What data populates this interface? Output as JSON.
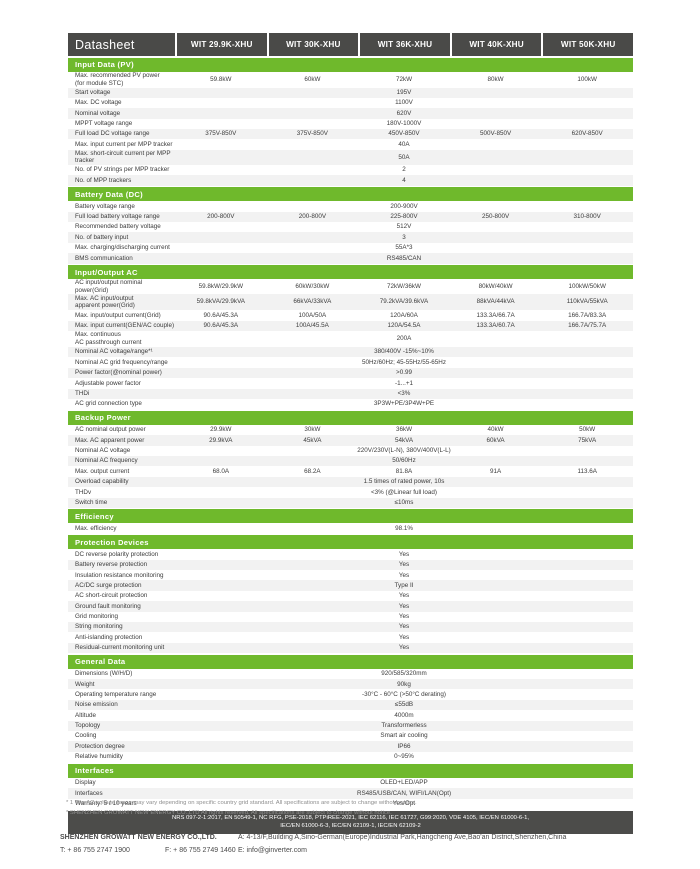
{
  "colors": {
    "accent_green": "#6FB92C",
    "header_dark": "#4A4A48",
    "certbar_dark": "#4C4C4A",
    "zebra_gray": "#F2F2F2",
    "text": "#3B3B3B"
  },
  "header": {
    "title": "Datasheet",
    "models": [
      "WIT 29.9K-XHU",
      "WIT 30K-XHU",
      "WIT 36K-XHU",
      "WIT 40K-XHU",
      "WIT 50K-XHU"
    ]
  },
  "sections": [
    {
      "title": "Input Data (PV)",
      "rows": [
        {
          "label": "Max. recommended PV power\n(for module STC)",
          "values": [
            "59.8kW",
            "60kW",
            "72kW",
            "80kW",
            "100kW"
          ]
        },
        {
          "label": "Start voltage",
          "span": "195V"
        },
        {
          "label": "Max. DC voltage",
          "span": "1100V"
        },
        {
          "label": "Nominal voltage",
          "span": "620V"
        },
        {
          "label": "MPPT voltage range",
          "span": "180V-1000V"
        },
        {
          "label": "Full load DC voltage range",
          "values": [
            "375V-850V",
            "375V-850V",
            "450V-850V",
            "500V-850V",
            "620V-850V"
          ]
        },
        {
          "label": "Max. input current per MPP tracker",
          "span": "40A"
        },
        {
          "label": "Max. short-circuit current per MPP tracker",
          "span": "50A"
        },
        {
          "label": "No. of PV strings per MPP tracker",
          "span": "2"
        },
        {
          "label": "No. of MPP trackers",
          "span": "4"
        }
      ]
    },
    {
      "title": "Battery Data (DC)",
      "rows": [
        {
          "label": "Battery voltage range",
          "span": "200-900V"
        },
        {
          "label": "Full load battery voltage range",
          "values": [
            "200-800V",
            "200-800V",
            "225-800V",
            "250-800V",
            "310-800V"
          ]
        },
        {
          "label": "Recommended battery voltage",
          "span": "512V"
        },
        {
          "label": "No. of battery input",
          "span": "3"
        },
        {
          "label": "Max. charging/discharging current",
          "span": "55A*3"
        },
        {
          "label": "BMS communication",
          "span": "RS485/CAN"
        }
      ]
    },
    {
      "title": "Input/Output AC",
      "rows": [
        {
          "label": "AC input/output nominal power(Grid)",
          "values": [
            "59.8kW/29.9kW",
            "60kW/30kW",
            "72kW/36kW",
            "80kW/40kW",
            "100kW/50kW"
          ]
        },
        {
          "label": "Max. AC input/output\napparent power(Grid)",
          "values": [
            "59.8kVA/29.9kVA",
            "66kVA/33kVA",
            "79.2kVA/39.6kVA",
            "88kVA/44kVA",
            "110kVA/55kVA"
          ]
        },
        {
          "label": "Max. input/output current(Grid)",
          "values": [
            "90.6A/45.3A",
            "100A/50A",
            "120A/60A",
            "133.3A/66.7A",
            "166.7A/83.3A"
          ]
        },
        {
          "label": "Max. input current(GEN/AC couple)",
          "values": [
            "90.6A/45.3A",
            "100A/45.5A",
            "120A/54.5A",
            "133.3A/60.7A",
            "166.7A/75.7A"
          ]
        },
        {
          "label": "Max. continuous\nAC passthrough current",
          "span": "200A"
        },
        {
          "label": "Nominal AC voltage/range*¹",
          "span": "380/400V  -15%~10%"
        },
        {
          "label": "Nominal AC grid frequency/range",
          "span": "50Hz/60Hz; 45-55Hz/55-65Hz"
        },
        {
          "label": "Power factor(@nominal power)",
          "span": ">0.99"
        },
        {
          "label": "Adjustable power factor",
          "span": "-1...+1"
        },
        {
          "label": "THDi",
          "span": "<3%"
        },
        {
          "label": "AC grid connection type",
          "span": "3P3W+PE/3P4W+PE"
        }
      ]
    },
    {
      "title": "Backup Power",
      "rows": [
        {
          "label": "AC nominal output power",
          "values": [
            "29.9kW",
            "30kW",
            "36kW",
            "40kW",
            "50kW"
          ]
        },
        {
          "label": "Max. AC apparent power",
          "values": [
            "29.9kVA",
            "45kVA",
            "54kVA",
            "60kVA",
            "75kVA"
          ]
        },
        {
          "label": "Nominal AC voltage",
          "span": "220V/230V(L-N), 380V/400V(L-L)"
        },
        {
          "label": "Nominal AC frequency",
          "span": "50/60Hz"
        },
        {
          "label": "Max. output current",
          "values": [
            "68.0A",
            "68.2A",
            "81.8A",
            "91A",
            "113.6A"
          ]
        },
        {
          "label": "Overload capability",
          "span": "1.5 times of rated power, 10s"
        },
        {
          "label": "THDv",
          "span": "<3% (@Linear full load)"
        },
        {
          "label": "Switch time",
          "span": "≤10ms"
        }
      ]
    },
    {
      "title": "Efficiency",
      "rows": [
        {
          "label": "Max. efficiency",
          "span": "98.1%"
        }
      ]
    },
    {
      "title": "Protection Devices",
      "rows": [
        {
          "label": "DC reverse polarity protection",
          "span": "Yes"
        },
        {
          "label": "Battery reverse protection",
          "span": "Yes"
        },
        {
          "label": "Insulation resistance monitoring",
          "span": "Yes"
        },
        {
          "label": "AC/DC surge protection",
          "span": "Type II"
        },
        {
          "label": "AC short-circuit protection",
          "span": "Yes"
        },
        {
          "label": "Ground fault monitoring",
          "span": "Yes"
        },
        {
          "label": "Grid monitoring",
          "span": "Yes"
        },
        {
          "label": "String monitoring",
          "span": "Yes"
        },
        {
          "label": "Anti-islanding protection",
          "span": "Yes"
        },
        {
          "label": "Residual-current monitoring unit",
          "span": "Yes"
        }
      ]
    },
    {
      "title": "General Data",
      "rows": [
        {
          "label": "Dimensions (W/H/D)",
          "span": "920/585/320mm"
        },
        {
          "label": "Weight",
          "span": "90kg"
        },
        {
          "label": "Operating temperature range",
          "span": "-30°C - 60°C (>50°C derating)"
        },
        {
          "label": "Noise emission",
          "span": "≤55dB"
        },
        {
          "label": "Altitude",
          "span": "4000m"
        },
        {
          "label": "Topology",
          "span": "Transformerless"
        },
        {
          "label": "Cooling",
          "span": "Smart air cooling"
        },
        {
          "label": "Protection degree",
          "span": "IP66"
        },
        {
          "label": "Relative humidity",
          "span": "0~95%"
        }
      ]
    },
    {
      "title": "Interfaces",
      "rows": [
        {
          "label": "Display",
          "span": "OLED+LED/APP"
        },
        {
          "label": "Interfaces",
          "span": "RS485/USB/CAN, WIFI/LAN(Opt)"
        },
        {
          "label": "Warranty: 5 / 10 years",
          "span": "Yes/Opt"
        }
      ]
    }
  ],
  "certifications": {
    "line1": "NRS 097-2-1:2017, EN 50549-1, NC RFG, PSE-2018, PTPiREE-2021, IEC 62116, IEC 61727, G99:2020, VDE 4105, IEC/EN 61000-6-1,",
    "line2": "IEC/EN 61000-6-3, IEC/EN 62109-1, IEC/EN 62109-2"
  },
  "footnotes": {
    "note1": "* 1 The AC voltage range may vary depending on specific country grid standard. All specifications are subject to change without notice.",
    "note2": "* SHENZHEN GROWATT NEW ENERGY CO.,LTD All rights reserved. All specifications are subject to change without notice."
  },
  "footer": {
    "company": "SHENZHEN GROWATT NEW ENERGY CO.,LTD.",
    "address": "A:  4-13/F,Building A,Sino-German(Europe)Industrial Park,Hangcheng Ave,Bao'an District,Shenzhen,China",
    "tel": "T:   + 86 755 2747 1900",
    "fax": "F:   + 86 755 2749 1460",
    "email": "E:  info@ginverter.com"
  }
}
